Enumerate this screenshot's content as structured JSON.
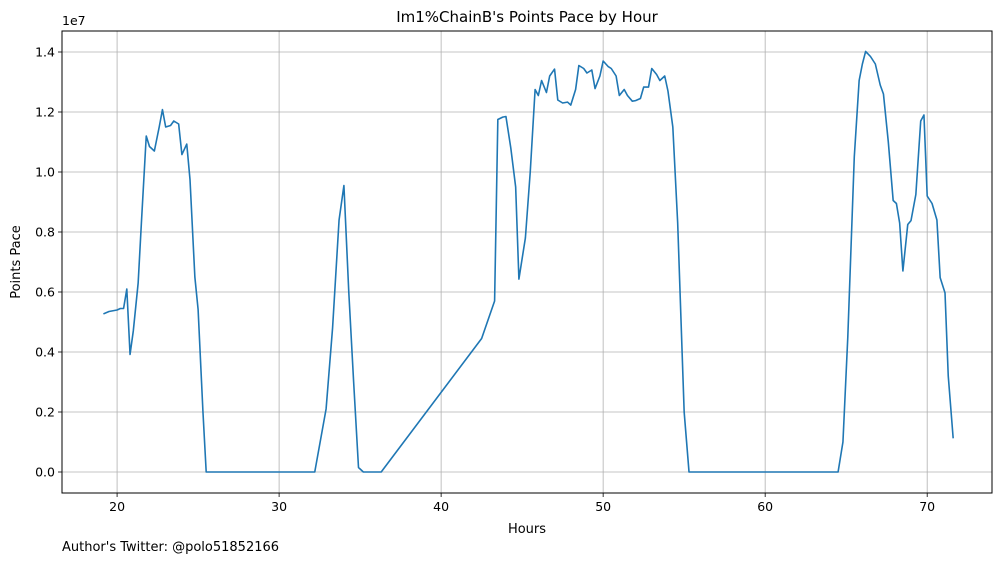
{
  "chart_data": {
    "type": "line",
    "title": "Im1%ChainB's Points Pace by Hour",
    "xlabel": "Hours",
    "ylabel": "Points Pace",
    "y_offset_label": "1e7",
    "xlim": [
      16.6,
      74.0
    ],
    "ylim": [
      -700000,
      14700000
    ],
    "x_ticks": [
      20,
      30,
      40,
      50,
      60,
      70
    ],
    "y_ticks": [
      0,
      2000000,
      4000000,
      6000000,
      8000000,
      10000000,
      12000000,
      14000000
    ],
    "x_tick_labels": [
      "20",
      "30",
      "40",
      "50",
      "60",
      "70"
    ],
    "y_tick_labels": [
      "0.0",
      "0.2",
      "0.4",
      "0.6",
      "0.8",
      "1.0",
      "1.2",
      "1.4"
    ],
    "grid": true,
    "line_color": "#1f77b4",
    "series": [
      {
        "points": [
          [
            19.2,
            5280000
          ],
          [
            19.5,
            5350000
          ],
          [
            20.0,
            5400000
          ],
          [
            20.2,
            5450000
          ],
          [
            20.4,
            5450000
          ],
          [
            20.6,
            6100000
          ],
          [
            20.8,
            3920000
          ],
          [
            21.0,
            4700000
          ],
          [
            21.3,
            6300000
          ],
          [
            21.5,
            8300000
          ],
          [
            21.8,
            11200000
          ],
          [
            22.0,
            10850000
          ],
          [
            22.3,
            10700000
          ],
          [
            22.6,
            11500000
          ],
          [
            22.8,
            12080000
          ],
          [
            23.0,
            11500000
          ],
          [
            23.3,
            11550000
          ],
          [
            23.5,
            11700000
          ],
          [
            23.8,
            11600000
          ],
          [
            24.0,
            10580000
          ],
          [
            24.3,
            10930000
          ],
          [
            24.5,
            9750000
          ],
          [
            24.8,
            6500000
          ],
          [
            25.0,
            5420000
          ],
          [
            25.3,
            2000000
          ],
          [
            25.5,
            0
          ],
          [
            32.2,
            0
          ],
          [
            32.9,
            2100000
          ],
          [
            33.3,
            4800000
          ],
          [
            33.7,
            8400000
          ],
          [
            34.0,
            9550000
          ],
          [
            34.3,
            6000000
          ],
          [
            34.6,
            3000000
          ],
          [
            34.9,
            150000
          ],
          [
            35.2,
            0
          ],
          [
            36.3,
            0
          ],
          [
            42.5,
            4450000
          ],
          [
            43.3,
            5700000
          ],
          [
            43.5,
            11750000
          ],
          [
            43.8,
            11830000
          ],
          [
            44.0,
            11850000
          ],
          [
            44.3,
            10800000
          ],
          [
            44.6,
            9500000
          ],
          [
            44.8,
            6430000
          ],
          [
            45.2,
            7800000
          ],
          [
            45.5,
            10000000
          ],
          [
            45.8,
            12750000
          ],
          [
            46.0,
            12550000
          ],
          [
            46.2,
            13050000
          ],
          [
            46.5,
            12650000
          ],
          [
            46.7,
            13200000
          ],
          [
            47.0,
            13430000
          ],
          [
            47.2,
            12400000
          ],
          [
            47.5,
            12300000
          ],
          [
            47.8,
            12330000
          ],
          [
            48.0,
            12230000
          ],
          [
            48.3,
            12750000
          ],
          [
            48.5,
            13550000
          ],
          [
            48.8,
            13450000
          ],
          [
            49.0,
            13300000
          ],
          [
            49.3,
            13400000
          ],
          [
            49.5,
            12780000
          ],
          [
            49.8,
            13200000
          ],
          [
            50.0,
            13700000
          ],
          [
            50.3,
            13520000
          ],
          [
            50.5,
            13450000
          ],
          [
            50.8,
            13200000
          ],
          [
            51.0,
            12550000
          ],
          [
            51.3,
            12750000
          ],
          [
            51.5,
            12550000
          ],
          [
            51.8,
            12360000
          ],
          [
            52.0,
            12380000
          ],
          [
            52.3,
            12450000
          ],
          [
            52.5,
            12830000
          ],
          [
            52.8,
            12830000
          ],
          [
            53.0,
            13450000
          ],
          [
            53.3,
            13250000
          ],
          [
            53.5,
            13050000
          ],
          [
            53.8,
            13200000
          ],
          [
            54.0,
            12700000
          ],
          [
            54.3,
            11500000
          ],
          [
            54.6,
            8300000
          ],
          [
            55.0,
            2000000
          ],
          [
            55.3,
            0
          ],
          [
            64.5,
            0
          ],
          [
            64.8,
            1000000
          ],
          [
            65.1,
            4500000
          ],
          [
            65.5,
            10500000
          ],
          [
            65.8,
            13050000
          ],
          [
            66.0,
            13600000
          ],
          [
            66.2,
            14020000
          ],
          [
            66.5,
            13850000
          ],
          [
            66.8,
            13600000
          ],
          [
            67.1,
            12900000
          ],
          [
            67.3,
            12600000
          ],
          [
            67.6,
            11000000
          ],
          [
            67.9,
            9050000
          ],
          [
            68.1,
            8950000
          ],
          [
            68.3,
            8300000
          ],
          [
            68.5,
            6700000
          ],
          [
            68.8,
            8250000
          ],
          [
            69.0,
            8380000
          ],
          [
            69.3,
            9250000
          ],
          [
            69.6,
            11700000
          ],
          [
            69.8,
            11900000
          ],
          [
            70.0,
            9200000
          ],
          [
            70.3,
            8950000
          ],
          [
            70.6,
            8400000
          ],
          [
            70.8,
            6480000
          ],
          [
            71.1,
            5970000
          ],
          [
            71.3,
            3200000
          ],
          [
            71.6,
            1150000
          ]
        ]
      }
    ]
  },
  "footer": {
    "attribution": "Author's Twitter: @polo51852166"
  }
}
